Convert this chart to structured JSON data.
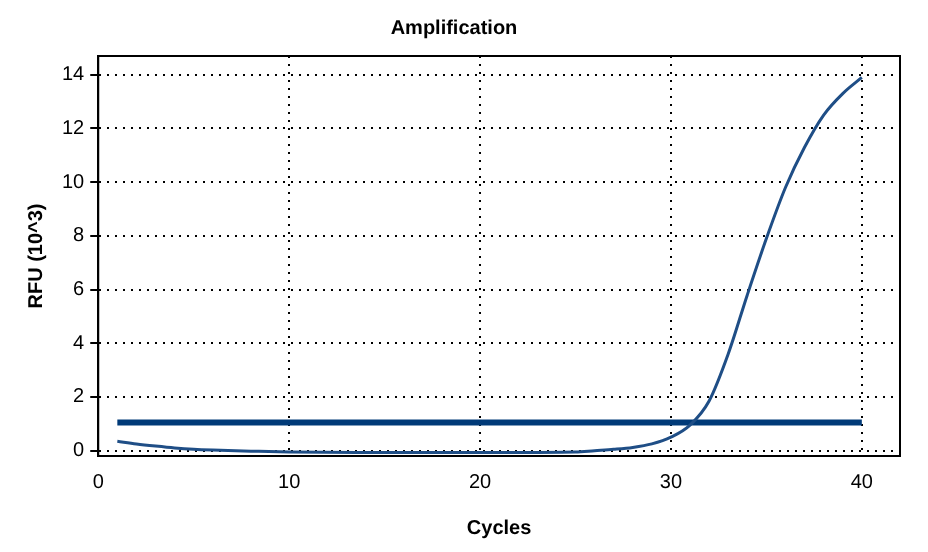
{
  "chart_data": {
    "type": "line",
    "title": "Amplification",
    "xlabel": "Cycles",
    "ylabel": "RFU (10^3)",
    "xlim": [
      0,
      42
    ],
    "xticks": [
      0,
      10,
      20,
      30,
      40
    ],
    "ylim": [
      -0.2,
      14.7
    ],
    "yticks": [
      0,
      2,
      4,
      6,
      8,
      10,
      12,
      14
    ],
    "grid": true,
    "legend": false,
    "marker": "none",
    "series": [
      {
        "color": "#1f4e86",
        "x": [
          1,
          2,
          3,
          4,
          5,
          6,
          8,
          10,
          15,
          20,
          25,
          26,
          27,
          28,
          29,
          30,
          31,
          32,
          33,
          34,
          35,
          36,
          37,
          38,
          39,
          40
        ],
        "values": [
          0.35,
          0.25,
          0.17,
          0.1,
          0.05,
          0.02,
          -0.02,
          -0.05,
          -0.07,
          -0.07,
          -0.05,
          0,
          0.05,
          0.12,
          0.25,
          0.5,
          0.95,
          1.85,
          3.6,
          5.8,
          7.9,
          9.8,
          11.3,
          12.5,
          13.3,
          13.9
        ]
      },
      {
        "color": "#003a78",
        "x": [
          1,
          40
        ],
        "values": [
          1.05,
          1.05
        ]
      }
    ]
  }
}
